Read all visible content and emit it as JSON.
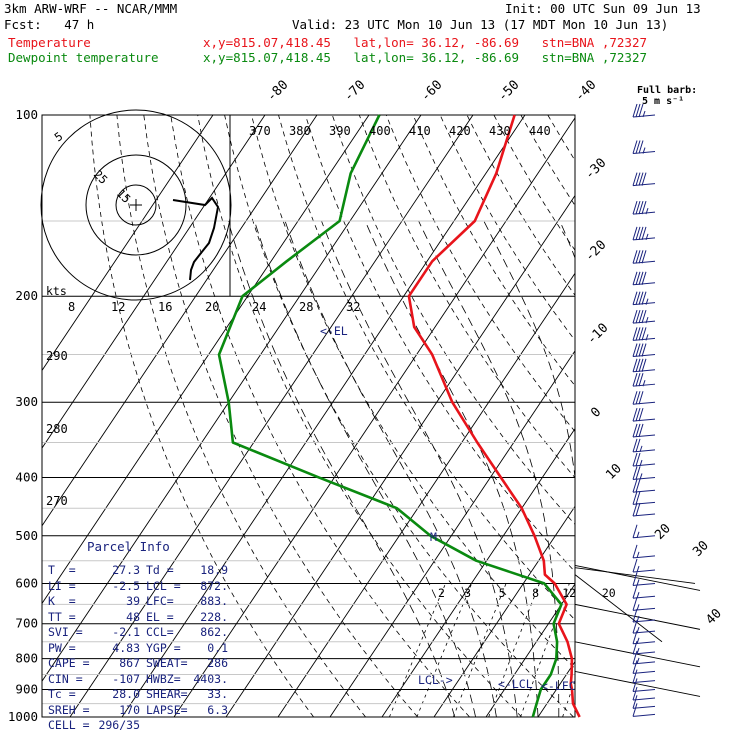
{
  "header": {
    "model": "3km ARW-WRF -- NCAR/MMM",
    "init": "Init: 00 UTC Sun 09 Jun 13",
    "fcst": "Fcst:   47 h",
    "valid": "Valid: 23 UTC Mon 10 Jun 13 (17 MDT Mon 10 Jun 13)",
    "temp_label": "Temperature",
    "dew_label": "Dewpoint temperature",
    "location": "x,y=815.07,418.45   lat,lon= 36.12, -86.69   stn=BNA ,72327"
  },
  "colors": {
    "temperature": "#e8141b",
    "dewpoint": "#0a8a10",
    "annotation": "#1a237e",
    "hodograph": "#000000"
  },
  "barb_key": [
    "Full barb:",
    "5 m s⁻¹"
  ],
  "parcel_info": {
    "title": "Parcel Info",
    "rows": [
      [
        "T  =",
        "27.3",
        "Td =",
        "18.9"
      ],
      [
        "LI =",
        "-2.5",
        "LCL =",
        "872."
      ],
      [
        "K  =",
        "39",
        "LFC=",
        "883."
      ],
      [
        "TT =",
        "48",
        "EL =",
        "228."
      ],
      [
        "SVI =",
        "-2.1",
        "CCL=",
        "862."
      ],
      [
        "PW =",
        "4.83",
        "YGP =",
        "0.1"
      ],
      [
        "CAPE =",
        "867",
        "SWEAT=",
        "286"
      ],
      [
        "CIN =",
        "-107",
        "HWBZ=",
        "4403."
      ],
      [
        "Tc =",
        "28.0",
        "SHEAR=",
        "33."
      ],
      [
        "SREH =",
        "170",
        "LAPSE=",
        "6.3"
      ],
      [
        "CELL =",
        "296/35",
        "",
        ""
      ]
    ]
  },
  "chart_data": {
    "type": "skew-t",
    "pressure_levels": [
      100,
      200,
      300,
      400,
      500,
      600,
      700,
      800,
      900,
      1000
    ],
    "pressure_labels": [
      "100",
      "200",
      "300",
      "400",
      "500",
      "600",
      "700",
      "800",
      "900",
      "1000"
    ],
    "isotherm_labels_top": [
      "-80",
      "-70",
      "-60",
      "-50",
      "-40"
    ],
    "isotherm_labels_right": [
      "-30",
      "-20",
      "-10",
      "0",
      "10",
      "20",
      "30",
      "40"
    ],
    "theta_labels": [
      "370",
      "380",
      "390",
      "400",
      "410",
      "420",
      "430",
      "440"
    ],
    "dry_adiabat_labels": [
      "290",
      "280",
      "270"
    ],
    "mixing_ratio_labels": [
      "2",
      "3",
      "5",
      "8",
      "12",
      "20"
    ],
    "hodograph": {
      "units": "kts",
      "rings": [
        "5",
        "15",
        "25"
      ],
      "speed_scale": [
        "8",
        "12",
        "16",
        "20",
        "24",
        "28",
        "32"
      ]
    },
    "annotations": [
      {
        "text": "<-EL",
        "p": 225
      },
      {
        "text": "M",
        "p": 500
      },
      {
        "text": "LCL->",
        "p": 870
      },
      {
        "text": "<-LCL",
        "p": 872
      },
      {
        "text": "<-LFC",
        "p": 883
      }
    ],
    "series": [
      {
        "name": "Temperature",
        "points": [
          [
            100,
            -62
          ],
          [
            125,
            -58
          ],
          [
            150,
            -56
          ],
          [
            175,
            -59
          ],
          [
            200,
            -59
          ],
          [
            225,
            -54
          ],
          [
            250,
            -47
          ],
          [
            300,
            -37
          ],
          [
            350,
            -27
          ],
          [
            400,
            -18
          ],
          [
            450,
            -10
          ],
          [
            500,
            -4
          ],
          [
            550,
            1
          ],
          [
            580,
            3
          ],
          [
            600,
            6
          ],
          [
            650,
            11
          ],
          [
            700,
            12
          ],
          [
            750,
            16
          ],
          [
            800,
            19
          ],
          [
            850,
            21
          ],
          [
            880,
            22
          ],
          [
            900,
            23
          ],
          [
            950,
            25
          ],
          [
            1000,
            28
          ]
        ]
      },
      {
        "name": "Dewpoint temperature",
        "points": [
          [
            100,
            -88
          ],
          [
            125,
            -86
          ],
          [
            150,
            -82
          ],
          [
            175,
            -87
          ],
          [
            200,
            -91
          ],
          [
            250,
            -88
          ],
          [
            300,
            -80
          ],
          [
            350,
            -74
          ],
          [
            400,
            -53
          ],
          [
            450,
            -34
          ],
          [
            500,
            -24
          ],
          [
            550,
            -12
          ],
          [
            600,
            4
          ],
          [
            650,
            10
          ],
          [
            700,
            11
          ],
          [
            750,
            14
          ],
          [
            800,
            16
          ],
          [
            850,
            17
          ],
          [
            900,
            17
          ],
          [
            950,
            18
          ],
          [
            1000,
            19
          ]
        ]
      }
    ],
    "wind_barbs": [
      [
        100,
        250,
        35
      ],
      [
        115,
        250,
        35
      ],
      [
        130,
        255,
        40
      ],
      [
        145,
        255,
        45
      ],
      [
        160,
        255,
        45
      ],
      [
        175,
        255,
        40
      ],
      [
        190,
        255,
        40
      ],
      [
        205,
        255,
        45
      ],
      [
        220,
        255,
        45
      ],
      [
        235,
        255,
        45
      ],
      [
        250,
        255,
        40
      ],
      [
        265,
        255,
        40
      ],
      [
        280,
        255,
        35
      ],
      [
        300,
        250,
        30
      ],
      [
        320,
        250,
        30
      ],
      [
        340,
        250,
        30
      ],
      [
        360,
        245,
        25
      ],
      [
        380,
        245,
        25
      ],
      [
        400,
        245,
        25
      ],
      [
        420,
        245,
        20
      ],
      [
        440,
        240,
        20
      ],
      [
        460,
        240,
        20
      ],
      [
        500,
        240,
        15
      ],
      [
        540,
        250,
        15
      ],
      [
        570,
        255,
        15
      ],
      [
        600,
        255,
        15
      ],
      [
        630,
        260,
        15
      ],
      [
        660,
        260,
        15
      ],
      [
        690,
        265,
        15
      ],
      [
        720,
        270,
        15
      ],
      [
        750,
        270,
        15
      ],
      [
        780,
        270,
        15
      ],
      [
        810,
        270,
        15
      ],
      [
        840,
        270,
        10
      ],
      [
        870,
        280,
        10
      ],
      [
        900,
        280,
        10
      ],
      [
        930,
        285,
        10
      ],
      [
        960,
        290,
        10
      ],
      [
        990,
        290,
        10
      ]
    ]
  }
}
